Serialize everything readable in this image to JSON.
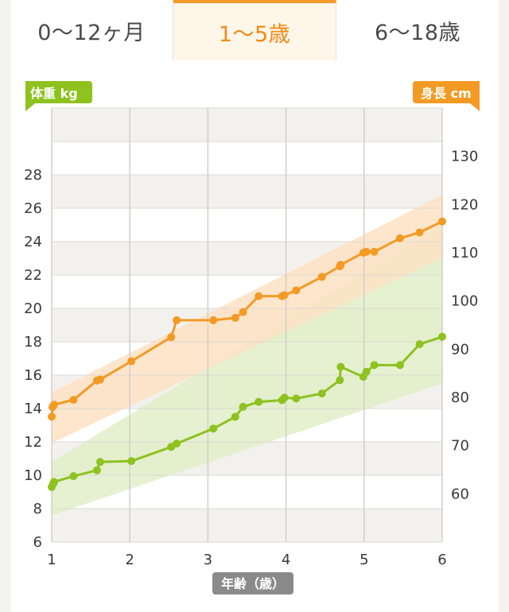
{
  "tabs": [
    {
      "label": "0～12ヶ月",
      "active": false
    },
    {
      "label": "1～5歳",
      "active": true
    },
    {
      "label": "6～18歳",
      "active": false
    }
  ],
  "colors": {
    "weight": "#8dc21f",
    "weight_band": "#e1efc8",
    "height": "#f39a24",
    "height_band": "#fde2c3",
    "axis_badge": "#8a8a8a"
  },
  "chart_data": {
    "type": "line",
    "xlabel": "年齢（歳）",
    "xlim": [
      1,
      6
    ],
    "x_ticks": [
      "1",
      "2",
      "3",
      "4",
      "5",
      "6"
    ],
    "y_left": {
      "label": "体重 kg",
      "ylim": [
        6,
        32
      ],
      "ticks": [
        "6",
        "8",
        "10",
        "12",
        "14",
        "16",
        "18",
        "20",
        "22",
        "24",
        "26",
        "28"
      ]
    },
    "y_right": {
      "label": "身長 cm",
      "ylim": [
        50,
        140
      ],
      "ticks": [
        "60",
        "70",
        "80",
        "90",
        "100",
        "110",
        "120",
        "130"
      ]
    },
    "grid": true,
    "series": [
      {
        "name": "体重 kg",
        "axis": "left",
        "x": [
          1.0,
          1.02,
          1.03,
          1.28,
          1.58,
          1.62,
          2.02,
          2.53,
          2.6,
          3.07,
          3.35,
          3.45,
          3.65,
          3.95,
          3.98,
          4.13,
          4.46,
          4.69,
          4.7,
          4.99,
          5.03,
          5.13,
          5.46,
          5.71,
          6.0
        ],
        "values": [
          9.3,
          9.5,
          9.6,
          9.95,
          10.3,
          10.8,
          10.85,
          11.7,
          11.9,
          12.8,
          13.5,
          14.1,
          14.4,
          14.5,
          14.65,
          14.6,
          14.9,
          15.7,
          16.5,
          15.9,
          16.2,
          16.6,
          16.6,
          17.85,
          18.3
        ],
        "band_lower": [
          7.6,
          15.5
        ],
        "band_upper": [
          10.8,
          25.0
        ]
      },
      {
        "name": "身長 cm",
        "axis": "right",
        "x": [
          1.0,
          1.01,
          1.03,
          1.28,
          1.58,
          1.62,
          2.02,
          2.53,
          2.6,
          3.07,
          3.35,
          3.45,
          3.65,
          3.95,
          3.98,
          4.13,
          4.46,
          4.69,
          4.7,
          4.99,
          5.03,
          5.13,
          5.46,
          5.71,
          6.0
        ],
        "values": [
          76.0,
          78.0,
          78.5,
          79.5,
          83.5,
          83.7,
          87.5,
          92.5,
          96.0,
          96.0,
          96.5,
          97.7,
          101.0,
          101.0,
          101.2,
          102.2,
          105.0,
          107.2,
          107.5,
          110.0,
          110.2,
          110.2,
          113.0,
          114.2,
          116.5
        ],
        "band_lower": [
          70.5,
          109.0
        ],
        "band_upper": [
          81.0,
          122.0
        ]
      }
    ]
  }
}
